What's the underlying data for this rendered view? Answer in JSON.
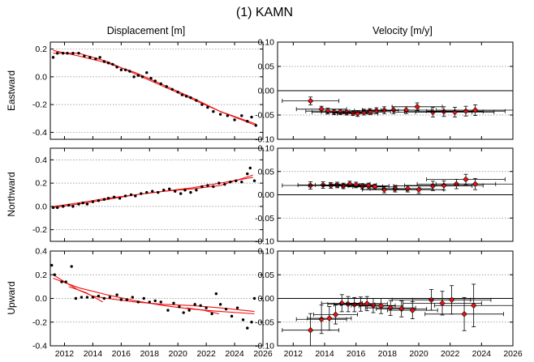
{
  "title": "(1) KAMN",
  "column_titles": [
    "Displacement [m]",
    "Velocity [m/y]"
  ],
  "row_labels": [
    "Eastward",
    "Northward",
    "Upward"
  ],
  "colors": {
    "fit_line": "#ee1111",
    "velocity_marker": "#ee1111",
    "points": "#000000",
    "gridline": "#888888"
  },
  "chart_data": [
    {
      "id": "disp-east",
      "type": "scatter",
      "xlim": [
        2011,
        2026
      ],
      "ylim": [
        -0.45,
        0.25
      ],
      "yticks": [
        0.2,
        0.0,
        -0.2,
        -0.4
      ],
      "ytick_labels": [
        "0.2",
        "0.0",
        "-0.2",
        "-0.4"
      ],
      "points": [
        [
          2011.2,
          0.14
        ],
        [
          2011.5,
          0.17
        ],
        [
          2011.9,
          0.17
        ],
        [
          2012.2,
          0.17
        ],
        [
          2012.6,
          0.17
        ],
        [
          2013.0,
          0.17
        ],
        [
          2013.4,
          0.15
        ],
        [
          2013.8,
          0.14
        ],
        [
          2014.2,
          0.13
        ],
        [
          2014.5,
          0.14
        ],
        [
          2014.8,
          0.11
        ],
        [
          2015.1,
          0.1
        ],
        [
          2015.4,
          0.09
        ],
        [
          2015.7,
          0.07
        ],
        [
          2016.0,
          0.05
        ],
        [
          2016.3,
          0.05
        ],
        [
          2016.6,
          0.04
        ],
        [
          2016.9,
          0.0
        ],
        [
          2017.2,
          0.01
        ],
        [
          2017.5,
          0.0
        ],
        [
          2017.8,
          0.03
        ],
        [
          2018.1,
          -0.01
        ],
        [
          2018.4,
          -0.03
        ],
        [
          2018.8,
          -0.05
        ],
        [
          2019.2,
          -0.07
        ],
        [
          2019.6,
          -0.09
        ],
        [
          2020.0,
          -0.11
        ],
        [
          2020.3,
          -0.13
        ],
        [
          2020.6,
          -0.14
        ],
        [
          2020.9,
          -0.15
        ],
        [
          2021.3,
          -0.17
        ],
        [
          2021.7,
          -0.2
        ],
        [
          2022.1,
          -0.22
        ],
        [
          2022.5,
          -0.25
        ],
        [
          2023.0,
          -0.27
        ],
        [
          2023.5,
          -0.28
        ],
        [
          2024.0,
          -0.31
        ],
        [
          2024.5,
          -0.28
        ],
        [
          2024.9,
          -0.32
        ],
        [
          2025.2,
          -0.29
        ],
        [
          2025.5,
          -0.35
        ]
      ],
      "fits": [
        [
          [
            2011.2,
            0.17
          ],
          [
            2013.0,
            0.17
          ],
          [
            2015.0,
            0.11
          ],
          [
            2017.0,
            0.02
          ],
          [
            2019.0,
            -0.07
          ],
          [
            2021.0,
            -0.16
          ],
          [
            2023.0,
            -0.25
          ],
          [
            2025.5,
            -0.34
          ]
        ],
        [
          [
            2011.2,
            0.19
          ],
          [
            2013.0,
            0.15
          ],
          [
            2015.0,
            0.1
          ],
          [
            2017.0,
            0.03
          ],
          [
            2019.0,
            -0.06
          ],
          [
            2021.0,
            -0.15
          ],
          [
            2023.0,
            -0.25
          ],
          [
            2025.5,
            -0.35
          ]
        ]
      ]
    },
    {
      "id": "vel-east",
      "type": "scatter-errorbar",
      "xlim": [
        2011,
        2026
      ],
      "ylim": [
        -0.1,
        0.1
      ],
      "yticks": [
        0.1,
        0.05,
        0.0,
        -0.05,
        -0.1
      ],
      "ytick_labels": [
        "0.10",
        "0.05",
        "0.00",
        "-0.05",
        "-0.10"
      ],
      "points": [
        {
          "x": 2013.1,
          "y": -0.021,
          "xerr": 1.8,
          "yerr": 0.008
        },
        {
          "x": 2013.8,
          "y": -0.038,
          "xerr": 1.6,
          "yerr": 0.006
        },
        {
          "x": 2014.2,
          "y": -0.042,
          "xerr": 1.4,
          "yerr": 0.006
        },
        {
          "x": 2014.6,
          "y": -0.044,
          "xerr": 1.4,
          "yerr": 0.005
        },
        {
          "x": 2015.0,
          "y": -0.044,
          "xerr": 1.2,
          "yerr": 0.005
        },
        {
          "x": 2015.4,
          "y": -0.045,
          "xerr": 1.3,
          "yerr": 0.005
        },
        {
          "x": 2015.8,
          "y": -0.046,
          "xerr": 1.2,
          "yerr": 0.005
        },
        {
          "x": 2016.1,
          "y": -0.047,
          "xerr": 1.3,
          "yerr": 0.006
        },
        {
          "x": 2016.5,
          "y": -0.044,
          "xerr": 1.3,
          "yerr": 0.006
        },
        {
          "x": 2016.9,
          "y": -0.043,
          "xerr": 1.3,
          "yerr": 0.006
        },
        {
          "x": 2017.3,
          "y": -0.041,
          "xerr": 1.4,
          "yerr": 0.006
        },
        {
          "x": 2017.8,
          "y": -0.04,
          "xerr": 1.4,
          "yerr": 0.007
        },
        {
          "x": 2018.4,
          "y": -0.04,
          "xerr": 1.6,
          "yerr": 0.007
        },
        {
          "x": 2019.2,
          "y": -0.04,
          "xerr": 1.6,
          "yerr": 0.007
        },
        {
          "x": 2019.9,
          "y": -0.033,
          "xerr": 1.6,
          "yerr": 0.008
        },
        {
          "x": 2020.9,
          "y": -0.044,
          "xerr": 2.5,
          "yerr": 0.01
        },
        {
          "x": 2021.6,
          "y": -0.043,
          "xerr": 2.5,
          "yerr": 0.01
        },
        {
          "x": 2022.3,
          "y": -0.044,
          "xerr": 2.5,
          "yerr": 0.01
        },
        {
          "x": 2023.0,
          "y": -0.042,
          "xerr": 2.5,
          "yerr": 0.01
        },
        {
          "x": 2023.6,
          "y": -0.04,
          "xerr": 2.5,
          "yerr": 0.011
        }
      ]
    },
    {
      "id": "disp-north",
      "type": "scatter",
      "xlim": [
        2011,
        2026
      ],
      "ylim": [
        -0.3,
        0.5
      ],
      "yticks": [
        0.4,
        0.2,
        0.0,
        -0.2
      ],
      "ytick_labels": [
        "0.4",
        "0.2",
        "0.0",
        "-0.2"
      ],
      "points": [
        [
          2011.2,
          -0.01
        ],
        [
          2011.5,
          -0.01
        ],
        [
          2011.9,
          0.0
        ],
        [
          2012.3,
          0.01
        ],
        [
          2012.6,
          0.0
        ],
        [
          2013.0,
          0.02
        ],
        [
          2013.3,
          0.03
        ],
        [
          2013.6,
          0.02
        ],
        [
          2014.0,
          0.04
        ],
        [
          2014.4,
          0.05
        ],
        [
          2014.8,
          0.06
        ],
        [
          2015.1,
          0.07
        ],
        [
          2015.5,
          0.08
        ],
        [
          2015.9,
          0.07
        ],
        [
          2016.3,
          0.09
        ],
        [
          2016.7,
          0.1
        ],
        [
          2017.0,
          0.09
        ],
        [
          2017.4,
          0.11
        ],
        [
          2017.8,
          0.12
        ],
        [
          2018.2,
          0.13
        ],
        [
          2018.6,
          0.12
        ],
        [
          2019.0,
          0.14
        ],
        [
          2019.4,
          0.15
        ],
        [
          2019.8,
          0.13
        ],
        [
          2020.2,
          0.11
        ],
        [
          2020.5,
          0.14
        ],
        [
          2020.9,
          0.12
        ],
        [
          2021.3,
          0.14
        ],
        [
          2021.7,
          0.17
        ],
        [
          2022.1,
          0.18
        ],
        [
          2022.5,
          0.17
        ],
        [
          2022.9,
          0.2
        ],
        [
          2023.3,
          0.19
        ],
        [
          2023.7,
          0.21
        ],
        [
          2024.1,
          0.22
        ],
        [
          2024.5,
          0.21
        ],
        [
          2024.9,
          0.28
        ],
        [
          2025.1,
          0.33
        ],
        [
          2025.4,
          0.22
        ]
      ],
      "fits": [
        [
          [
            2011.2,
            -0.01
          ],
          [
            2013.0,
            0.02
          ],
          [
            2015.0,
            0.06
          ],
          [
            2017.0,
            0.1
          ],
          [
            2019.0,
            0.13
          ],
          [
            2021.0,
            0.16
          ],
          [
            2023.0,
            0.2
          ],
          [
            2025.3,
            0.25
          ]
        ],
        [
          [
            2011.2,
            0.0
          ],
          [
            2013.0,
            0.03
          ],
          [
            2015.0,
            0.07
          ],
          [
            2017.0,
            0.1
          ],
          [
            2019.0,
            0.13
          ],
          [
            2021.0,
            0.15
          ],
          [
            2023.0,
            0.18
          ],
          [
            2025.3,
            0.27
          ]
        ]
      ]
    },
    {
      "id": "vel-north",
      "type": "scatter-errorbar",
      "xlim": [
        2011,
        2026
      ],
      "ylim": [
        -0.1,
        0.1
      ],
      "yticks": [
        0.1,
        0.05,
        0.0,
        -0.05,
        -0.1
      ],
      "ytick_labels": [
        "0.10",
        "0.05",
        "0.00",
        "-0.05",
        "-0.10"
      ],
      "points": [
        {
          "x": 2013.1,
          "y": 0.02,
          "xerr": 1.8,
          "yerr": 0.008
        },
        {
          "x": 2013.9,
          "y": 0.021,
          "xerr": 1.6,
          "yerr": 0.007
        },
        {
          "x": 2014.4,
          "y": 0.02,
          "xerr": 1.4,
          "yerr": 0.006
        },
        {
          "x": 2014.8,
          "y": 0.021,
          "xerr": 1.4,
          "yerr": 0.006
        },
        {
          "x": 2015.2,
          "y": 0.019,
          "xerr": 1.3,
          "yerr": 0.006
        },
        {
          "x": 2015.6,
          "y": 0.023,
          "xerr": 1.3,
          "yerr": 0.006
        },
        {
          "x": 2016.0,
          "y": 0.021,
          "xerr": 1.3,
          "yerr": 0.006
        },
        {
          "x": 2016.4,
          "y": 0.018,
          "xerr": 1.3,
          "yerr": 0.006
        },
        {
          "x": 2016.8,
          "y": 0.019,
          "xerr": 1.3,
          "yerr": 0.006
        },
        {
          "x": 2017.2,
          "y": 0.017,
          "xerr": 1.4,
          "yerr": 0.006
        },
        {
          "x": 2017.8,
          "y": 0.011,
          "xerr": 1.4,
          "yerr": 0.007
        },
        {
          "x": 2018.5,
          "y": 0.013,
          "xerr": 1.6,
          "yerr": 0.007
        },
        {
          "x": 2019.3,
          "y": 0.013,
          "xerr": 1.6,
          "yerr": 0.007
        },
        {
          "x": 2020.0,
          "y": 0.011,
          "xerr": 1.6,
          "yerr": 0.008
        },
        {
          "x": 2020.9,
          "y": 0.019,
          "xerr": 2.5,
          "yerr": 0.01
        },
        {
          "x": 2021.6,
          "y": 0.02,
          "xerr": 2.5,
          "yerr": 0.01
        },
        {
          "x": 2022.4,
          "y": 0.023,
          "xerr": 2.5,
          "yerr": 0.01
        },
        {
          "x": 2023.0,
          "y": 0.033,
          "xerr": 2.5,
          "yerr": 0.011
        },
        {
          "x": 2023.6,
          "y": 0.023,
          "xerr": 2.5,
          "yerr": 0.012
        }
      ]
    },
    {
      "id": "disp-up",
      "type": "scatter",
      "xlim": [
        2011,
        2026
      ],
      "ylim": [
        -0.4,
        0.4
      ],
      "yticks": [
        0.4,
        0.2,
        0.0,
        -0.2,
        -0.4
      ],
      "ytick_labels": [
        "0.4",
        "0.2",
        "0.0",
        "-0.2",
        "-0.4"
      ],
      "points": [
        [
          2011.1,
          0.28
        ],
        [
          2011.3,
          0.2
        ],
        [
          2011.8,
          0.14
        ],
        [
          2012.1,
          0.14
        ],
        [
          2012.5,
          0.27
        ],
        [
          2012.8,
          0.0
        ],
        [
          2013.2,
          0.01
        ],
        [
          2013.6,
          0.01
        ],
        [
          2014.0,
          0.01
        ],
        [
          2014.4,
          0.02
        ],
        [
          2014.8,
          0.0
        ],
        [
          2015.2,
          0.01
        ],
        [
          2015.7,
          0.03
        ],
        [
          2016.0,
          -0.01
        ],
        [
          2016.4,
          -0.01
        ],
        [
          2016.8,
          0.01
        ],
        [
          2017.2,
          -0.03
        ],
        [
          2017.6,
          0.0
        ],
        [
          2018.0,
          -0.03
        ],
        [
          2018.4,
          -0.02
        ],
        [
          2018.8,
          -0.03
        ],
        [
          2019.3,
          -0.1
        ],
        [
          2019.7,
          -0.04
        ],
        [
          2020.1,
          -0.07
        ],
        [
          2020.4,
          -0.12
        ],
        [
          2020.8,
          -0.1
        ],
        [
          2021.2,
          -0.05
        ],
        [
          2021.6,
          -0.06
        ],
        [
          2022.0,
          -0.08
        ],
        [
          2022.4,
          -0.13
        ],
        [
          2022.7,
          0.04
        ],
        [
          2023.0,
          -0.05
        ],
        [
          2023.4,
          -0.09
        ],
        [
          2023.8,
          -0.15
        ],
        [
          2024.2,
          -0.08
        ],
        [
          2024.6,
          -0.18
        ],
        [
          2024.9,
          -0.25
        ],
        [
          2025.2,
          -0.2
        ],
        [
          2025.4,
          0.0
        ]
      ],
      "fits": [
        [
          [
            2011.2,
            0.2
          ],
          [
            2012.0,
            0.14
          ],
          [
            2013.0,
            0.07
          ],
          [
            2014.0,
            0.02
          ],
          [
            2015.0,
            0.0
          ],
          [
            2017.0,
            -0.03
          ],
          [
            2019.0,
            -0.05
          ],
          [
            2021.0,
            -0.06
          ],
          [
            2023.0,
            -0.08
          ],
          [
            2025.4,
            -0.11
          ]
        ],
        [
          [
            2011.2,
            0.17
          ],
          [
            2013.0,
            0.09
          ],
          [
            2015.0,
            0.03
          ],
          [
            2017.0,
            -0.02
          ],
          [
            2019.0,
            -0.06
          ],
          [
            2021.0,
            -0.09
          ],
          [
            2023.0,
            -0.11
          ],
          [
            2025.4,
            -0.13
          ]
        ],
        [
          [
            2012.3,
            0.1
          ],
          [
            2013.5,
            0.05
          ],
          [
            2014.7,
            -0.03
          ]
        ],
        [
          [
            2020.6,
            -0.08
          ],
          [
            2021.8,
            -0.1
          ],
          [
            2022.9,
            -0.13
          ]
        ]
      ]
    },
    {
      "id": "vel-up",
      "type": "scatter-errorbar",
      "xlim": [
        2011,
        2026
      ],
      "ylim": [
        -0.1,
        0.1
      ],
      "yticks": [
        0.1,
        0.05,
        0.0,
        -0.05,
        -0.1
      ],
      "ytick_labels": [
        "0.10",
        "0.05",
        "0.00",
        "-0.05",
        "-0.10"
      ],
      "xticks": [
        2012,
        2014,
        2016,
        2018,
        2020,
        2022,
        2024,
        2026
      ],
      "xtick_labels": [
        "2012",
        "2014",
        "2016",
        "2018",
        "2020",
        "2022",
        "2024",
        "2026"
      ],
      "points": [
        {
          "x": 2013.1,
          "y": -0.067,
          "xerr": 1.8,
          "yerr": 0.035
        },
        {
          "x": 2013.8,
          "y": -0.044,
          "xerr": 1.6,
          "yerr": 0.03
        },
        {
          "x": 2014.3,
          "y": -0.042,
          "xerr": 1.4,
          "yerr": 0.025
        },
        {
          "x": 2014.7,
          "y": -0.034,
          "xerr": 1.4,
          "yerr": 0.02
        },
        {
          "x": 2015.1,
          "y": -0.01,
          "xerr": 1.3,
          "yerr": 0.018
        },
        {
          "x": 2015.5,
          "y": -0.012,
          "xerr": 1.3,
          "yerr": 0.016
        },
        {
          "x": 2015.9,
          "y": -0.013,
          "xerr": 1.3,
          "yerr": 0.015
        },
        {
          "x": 2016.3,
          "y": -0.012,
          "xerr": 1.3,
          "yerr": 0.015
        },
        {
          "x": 2016.7,
          "y": -0.011,
          "xerr": 1.3,
          "yerr": 0.015
        },
        {
          "x": 2017.1,
          "y": -0.015,
          "xerr": 1.4,
          "yerr": 0.015
        },
        {
          "x": 2017.6,
          "y": -0.016,
          "xerr": 1.4,
          "yerr": 0.016
        },
        {
          "x": 2018.2,
          "y": -0.02,
          "xerr": 1.6,
          "yerr": 0.016
        },
        {
          "x": 2018.9,
          "y": -0.022,
          "xerr": 1.6,
          "yerr": 0.017
        },
        {
          "x": 2019.6,
          "y": -0.025,
          "xerr": 1.6,
          "yerr": 0.018
        },
        {
          "x": 2020.8,
          "y": -0.003,
          "xerr": 2.5,
          "yerr": 0.022
        },
        {
          "x": 2021.5,
          "y": -0.01,
          "xerr": 2.5,
          "yerr": 0.025
        },
        {
          "x": 2022.1,
          "y": -0.003,
          "xerr": 2.5,
          "yerr": 0.03
        },
        {
          "x": 2022.9,
          "y": -0.033,
          "xerr": 2.5,
          "yerr": 0.035
        },
        {
          "x": 2023.5,
          "y": -0.015,
          "xerr": 2.5,
          "yerr": 0.045
        }
      ]
    }
  ]
}
